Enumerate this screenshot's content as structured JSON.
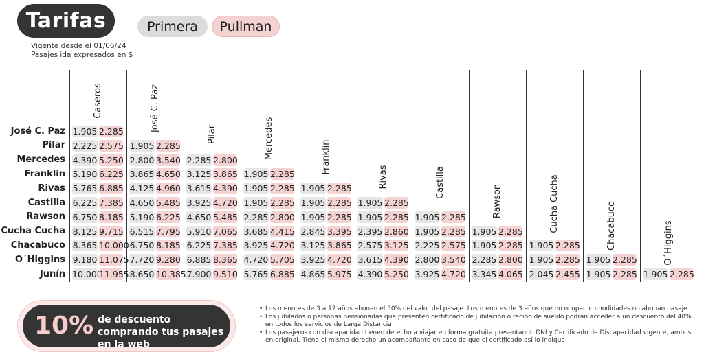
{
  "header": {
    "title": "Tarifas",
    "tabs": [
      "Primera",
      "Pullman"
    ],
    "valid_from": "Vigente desde el 01/06/24",
    "currency_note": "Pasajes ida expresados en $"
  },
  "columns": [
    "Caseros",
    "José C. Paz",
    "Pilar",
    "Mercedes",
    "Franklin",
    "Rivas",
    "Castilla",
    "Rawson",
    "Cucha Cucha",
    "Chacabuco",
    "O´Higgins"
  ],
  "rows": [
    {
      "label": "José C. Paz",
      "fares": [
        [
          "1.905",
          "2.285"
        ]
      ]
    },
    {
      "label": "Pilar",
      "fares": [
        [
          "2.225",
          "2.575"
        ],
        [
          "1.905",
          "2.285"
        ]
      ]
    },
    {
      "label": "Mercedes",
      "fares": [
        [
          "4.390",
          "5.250"
        ],
        [
          "2.800",
          "3.540"
        ],
        [
          "2.285",
          "2.800"
        ]
      ]
    },
    {
      "label": "Franklin",
      "fares": [
        [
          "5.190",
          "6.225"
        ],
        [
          "3.865",
          "4.650"
        ],
        [
          "3.125",
          "3.865"
        ],
        [
          "1.905",
          "2.285"
        ]
      ]
    },
    {
      "label": "Rivas",
      "fares": [
        [
          "5.765",
          "6.885"
        ],
        [
          "4.125",
          "4.960"
        ],
        [
          "3.615",
          "4.390"
        ],
        [
          "1.905",
          "2.285"
        ],
        [
          "1.905",
          "2.285"
        ]
      ]
    },
    {
      "label": "Castilla",
      "fares": [
        [
          "6.225",
          "7.385"
        ],
        [
          "4.650",
          "5.485"
        ],
        [
          "3.925",
          "4.720"
        ],
        [
          "1.905",
          "2.285"
        ],
        [
          "1.905",
          "2.285"
        ],
        [
          "1.905",
          "2.285"
        ]
      ]
    },
    {
      "label": "Rawson",
      "fares": [
        [
          "6.750",
          "8.185"
        ],
        [
          "5.190",
          "6.225"
        ],
        [
          "4.650",
          "5.485"
        ],
        [
          "2.285",
          "2.800"
        ],
        [
          "1.905",
          "2.285"
        ],
        [
          "1.905",
          "2.285"
        ],
        [
          "1.905",
          "2.285"
        ]
      ]
    },
    {
      "label": "Cucha Cucha",
      "fares": [
        [
          "8.125",
          "9.715"
        ],
        [
          "6.515",
          "7.795"
        ],
        [
          "5.910",
          "7.065"
        ],
        [
          "3.685",
          "4.415"
        ],
        [
          "2.845",
          "3.395"
        ],
        [
          "2.395",
          "2.860"
        ],
        [
          "1.905",
          "2.285"
        ],
        [
          "1.905",
          "2.285"
        ]
      ]
    },
    {
      "label": "Chacabuco",
      "fares": [
        [
          "8.365",
          "10.000"
        ],
        [
          "6.750",
          "8.185"
        ],
        [
          "6.225",
          "7.385"
        ],
        [
          "3.925",
          "4.720"
        ],
        [
          "3.125",
          "3.865"
        ],
        [
          "2.575",
          "3.125"
        ],
        [
          "2.225",
          "2.575"
        ],
        [
          "1.905",
          "2.285"
        ],
        [
          "1.905",
          "2.285"
        ]
      ]
    },
    {
      "label": "O´Higgins",
      "fares": [
        [
          "9.180",
          "11.075"
        ],
        [
          "7.720",
          "9.280"
        ],
        [
          "6.885",
          "8.365"
        ],
        [
          "4.720",
          "5.705"
        ],
        [
          "3.925",
          "4.720"
        ],
        [
          "3.615",
          "4.390"
        ],
        [
          "2.800",
          "3.540"
        ],
        [
          "2.285",
          "2.800"
        ],
        [
          "1.905",
          "2.285"
        ],
        [
          "1.905",
          "2.285"
        ]
      ]
    },
    {
      "label": "Junín",
      "fares": [
        [
          "10.000",
          "11.955"
        ],
        [
          "8.650",
          "10.385"
        ],
        [
          "7.900",
          "9.510"
        ],
        [
          "5.765",
          "6.885"
        ],
        [
          "4.865",
          "5.975"
        ],
        [
          "4.390",
          "5.250"
        ],
        [
          "3.925",
          "4.720"
        ],
        [
          "3.345",
          "4.065"
        ],
        [
          "2.045",
          "2.455"
        ],
        [
          "1.905",
          "2.285"
        ],
        [
          "1.905",
          "2.285"
        ]
      ]
    }
  ],
  "promo": {
    "percent": "10%",
    "text": "de descuento comprando tus pasajes en la web"
  },
  "notes": [
    "Los menores de 3 a 12 años abonan el 50% del valor del pasaje. Los menores de 3 años que no ocupan comodidades no abonan pasaje.",
    "Los jubilados o personas pensionadas que presenten certificado de jubilación o recibo de sueldo podrán acceder a un descuento del 40% en todos los servicios de Larga Distancia.",
    "Los pasajeros con discapacidad tienen derecho a viajar en forma gratuita presentando DNI y Certificado de Discapacidad vigente, ambos en original. Tiene el mismo derecho un acompañante en caso de que el certificado así lo indique."
  ],
  "colors": {
    "primera": "#e6e6e6",
    "pullman": "#f6d3d3",
    "dark": "#343434"
  }
}
